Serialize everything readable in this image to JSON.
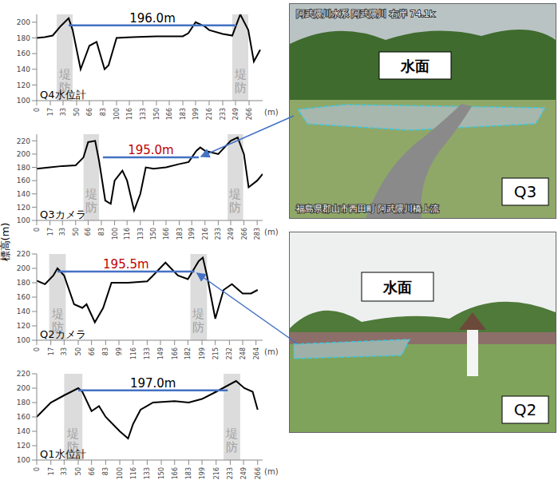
{
  "y_label": "標高(m)",
  "chart_data": [
    {
      "type": "line",
      "title": "Q4水位計",
      "xlabel": "(m)",
      "color": "#000000",
      "x": [
        0,
        10,
        20,
        30,
        40,
        45,
        55,
        66,
        75,
        85,
        90,
        100,
        120,
        150,
        183,
        190,
        199,
        210,
        216,
        233,
        245,
        255,
        265,
        272,
        280
      ],
      "values": [
        180,
        181,
        183,
        195,
        205,
        190,
        140,
        170,
        175,
        140,
        145,
        180,
        181,
        182,
        182,
        186,
        200,
        195,
        190,
        185,
        183,
        210,
        190,
        150,
        165
      ],
      "xlim": [
        0,
        283
      ],
      "xticks": [
        0,
        17,
        33,
        50,
        66,
        83,
        100,
        116,
        133,
        150,
        166,
        183,
        199,
        216,
        233,
        249,
        266
      ],
      "ylim": [
        100,
        210
      ],
      "yticks": [
        100,
        120,
        140,
        160,
        180,
        200
      ],
      "levees": {
        "label": "堤防",
        "ranges": [
          [
            25,
            45
          ],
          [
            245,
            265
          ]
        ]
      },
      "annotation": {
        "value": 196.0,
        "label": "196.0m",
        "x": [
          40,
          250
        ],
        "color": "#000000"
      }
    },
    {
      "type": "line",
      "title": "Q3カメラ",
      "xlabel": "(m)",
      "color": "#000000",
      "x": [
        0,
        17,
        33,
        50,
        60,
        66,
        75,
        80,
        88,
        95,
        100,
        110,
        116,
        125,
        133,
        140,
        150,
        166,
        183,
        195,
        205,
        210,
        216,
        233,
        249,
        258,
        266,
        272,
        283,
        290
      ],
      "values": [
        178,
        180,
        182,
        183,
        195,
        218,
        220,
        190,
        130,
        125,
        160,
        175,
        160,
        115,
        140,
        180,
        178,
        180,
        185,
        188,
        205,
        210,
        205,
        200,
        220,
        225,
        200,
        150,
        160,
        170
      ],
      "xlim": [
        0,
        290
      ],
      "xticks": [
        0,
        17,
        33,
        50,
        66,
        83,
        100,
        116,
        133,
        150,
        166,
        183,
        199,
        216,
        233,
        249,
        266,
        283
      ],
      "ylim": [
        100,
        230
      ],
      "yticks": [
        100,
        120,
        140,
        160,
        180,
        200,
        220
      ],
      "levees": {
        "label": "堤防",
        "ranges": [
          [
            60,
            80
          ],
          [
            245,
            265
          ]
        ]
      },
      "annotation": {
        "value": 195.0,
        "label": "195.0m",
        "x": [
          85,
          208
        ],
        "color": "#c00000"
      }
    },
    {
      "type": "line",
      "title": "Q2カメラ",
      "xlabel": "(m)",
      "color": "#000000",
      "x": [
        0,
        10,
        20,
        25,
        33,
        45,
        55,
        60,
        70,
        80,
        90,
        110,
        133,
        140,
        155,
        170,
        182,
        195,
        200,
        205,
        215,
        225,
        235,
        248,
        258,
        266
      ],
      "values": [
        183,
        178,
        190,
        200,
        190,
        150,
        145,
        150,
        125,
        145,
        180,
        180,
        182,
        190,
        208,
        190,
        185,
        210,
        215,
        190,
        130,
        170,
        178,
        165,
        165,
        170
      ],
      "xlim": [
        0,
        272
      ],
      "xticks": [
        0,
        17,
        33,
        50,
        66,
        83,
        99,
        116,
        133,
        149,
        166,
        182,
        199,
        215,
        232,
        248,
        264
      ],
      "ylim": [
        100,
        220
      ],
      "yticks": [
        100,
        120,
        140,
        160,
        180,
        200,
        220
      ],
      "levees": {
        "label": "堤防",
        "ranges": [
          [
            15,
            35
          ],
          [
            185,
            205
          ]
        ]
      },
      "annotation": {
        "value": 195.5,
        "label": "195.5m",
        "x": [
          25,
          190
        ],
        "color": "#c00000"
      }
    },
    {
      "type": "line",
      "title": "Q1水位計",
      "xlabel": "(m)",
      "color": "#000000",
      "x": [
        0,
        17,
        33,
        50,
        55,
        66,
        75,
        83,
        100,
        110,
        116,
        125,
        140,
        166,
        183,
        199,
        216,
        240,
        250,
        260,
        266
      ],
      "values": [
        160,
        180,
        190,
        200,
        195,
        168,
        175,
        160,
        140,
        130,
        150,
        170,
        180,
        182,
        180,
        185,
        195,
        210,
        200,
        195,
        170
      ],
      "xlim": [
        0,
        272
      ],
      "xticks": [
        0,
        17,
        33,
        50,
        66,
        83,
        100,
        116,
        133,
        150,
        166,
        183,
        199,
        216,
        233,
        249,
        266
      ],
      "ylim": [
        100,
        220
      ],
      "yticks": [
        100,
        120,
        140,
        160,
        180,
        200,
        220
      ],
      "levees": {
        "label": "堤防",
        "ranges": [
          [
            33,
            55
          ],
          [
            225,
            245
          ]
        ]
      },
      "annotation": {
        "value": 197.0,
        "label": "197.0m",
        "x": [
          50,
          230
        ],
        "color": "#000000"
      }
    }
  ],
  "photos": [
    {
      "label": "Q3",
      "water_label": "水面",
      "caption_top": "阿武隈川水系 阿武隈川 右岸 74.1k",
      "caption_bottom": "福島県郡山市西田町 阿武隈川橋上流"
    },
    {
      "label": "Q2",
      "water_label": "水面"
    }
  ]
}
